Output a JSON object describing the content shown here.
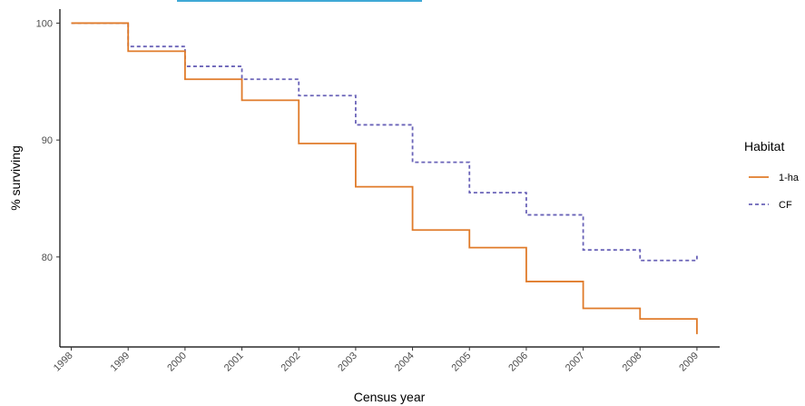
{
  "chart_data": {
    "type": "line",
    "title": "",
    "xlabel": "Census year",
    "ylabel": "% surviving",
    "x_ticks": [
      "1998",
      "1999",
      "2000",
      "2001",
      "2002",
      "2003",
      "2004",
      "2005",
      "2006",
      "2007",
      "2008",
      "2009"
    ],
    "y_ticks": [
      80,
      90,
      100
    ],
    "xlim": [
      1997.9,
      2009.5
    ],
    "ylim": [
      72.3,
      101.2
    ],
    "grid": false,
    "legend_title": "Habitat",
    "legend_position": "right",
    "series": [
      {
        "name": "1-ha",
        "color": "#e07b2a",
        "dash": "solid",
        "steps": [
          {
            "x": 1998.1,
            "y": 100.0
          },
          {
            "x": 1999.1,
            "y": 97.6
          },
          {
            "x": 2000.1,
            "y": 95.2
          },
          {
            "x": 2001.1,
            "y": 93.4
          },
          {
            "x": 2002.1,
            "y": 89.7
          },
          {
            "x": 2003.1,
            "y": 86.0
          },
          {
            "x": 2004.1,
            "y": 82.3
          },
          {
            "x": 2005.1,
            "y": 80.8
          },
          {
            "x": 2006.1,
            "y": 77.9
          },
          {
            "x": 2007.1,
            "y": 75.6
          },
          {
            "x": 2008.1,
            "y": 74.7
          },
          {
            "x": 2009.1,
            "y": 73.4
          }
        ]
      },
      {
        "name": "CF",
        "color": "#6a63b8",
        "dash": "dashed",
        "steps": [
          {
            "x": 1998.1,
            "y": 100.0
          },
          {
            "x": 1999.1,
            "y": 98.0
          },
          {
            "x": 2000.1,
            "y": 96.3
          },
          {
            "x": 2001.1,
            "y": 95.2
          },
          {
            "x": 2002.1,
            "y": 93.8
          },
          {
            "x": 2003.1,
            "y": 91.3
          },
          {
            "x": 2004.1,
            "y": 88.1
          },
          {
            "x": 2005.1,
            "y": 85.5
          },
          {
            "x": 2006.1,
            "y": 83.6
          },
          {
            "x": 2007.1,
            "y": 80.6
          },
          {
            "x": 2008.1,
            "y": 79.7
          },
          {
            "x": 2009.1,
            "y": 80.1
          }
        ]
      }
    ]
  }
}
